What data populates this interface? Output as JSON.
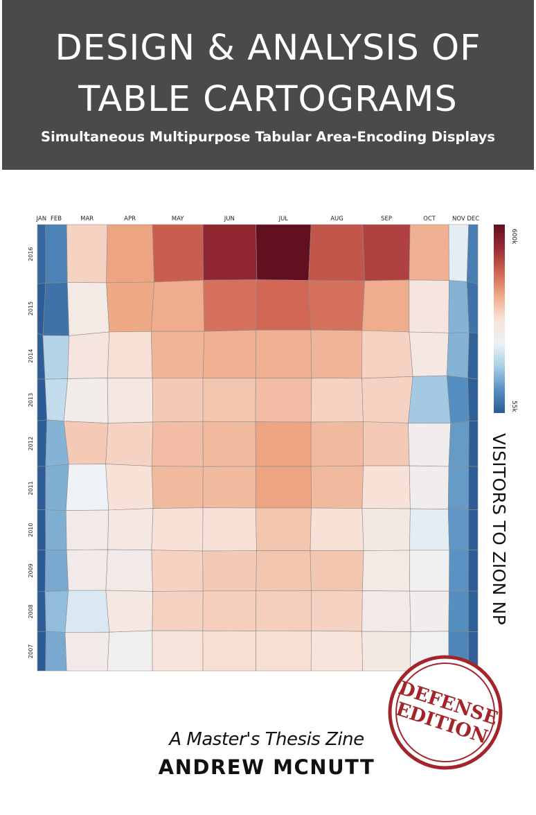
{
  "header": {
    "title_line1": "DESIGN & ANALYSIS OF",
    "title_line2": "TABLE CARTOGRAMS",
    "subtitle": "Simultaneous Multipurpose Tabular Area-Encoding Displays"
  },
  "chart_data": {
    "type": "heatmap",
    "title": "VISITORS TO ZION NP",
    "columns": [
      "JAN",
      "FEB",
      "MAR",
      "APR",
      "MAY",
      "JUN",
      "JUL",
      "AUG",
      "SEP",
      "OCT",
      "NOV",
      "DEC"
    ],
    "rows": [
      "2016",
      "2015",
      "2014",
      "2013",
      "2012",
      "2011",
      "2010",
      "2009",
      "2008",
      "2007"
    ],
    "units": "visitors",
    "values": [
      [
        72000,
        105000,
        345000,
        400000,
        470000,
        545000,
        600000,
        480000,
        505000,
        385000,
        250000,
        100000
      ],
      [
        58000,
        85000,
        295000,
        395000,
        390000,
        450000,
        460000,
        450000,
        390000,
        310000,
        160000,
        85000
      ],
      [
        60000,
        200000,
        310000,
        330000,
        380000,
        385000,
        385000,
        380000,
        345000,
        305000,
        160000,
        65000
      ],
      [
        55000,
        215000,
        285000,
        305000,
        355000,
        360000,
        370000,
        345000,
        345000,
        185000,
        120000,
        62000
      ],
      [
        60000,
        160000,
        355000,
        345000,
        370000,
        375000,
        400000,
        375000,
        355000,
        280000,
        135000,
        60000
      ],
      [
        58000,
        155000,
        260000,
        325000,
        375000,
        375000,
        400000,
        375000,
        325000,
        280000,
        135000,
        58000
      ],
      [
        55000,
        155000,
        290000,
        305000,
        325000,
        325000,
        360000,
        325000,
        300000,
        250000,
        130000,
        58000
      ],
      [
        55000,
        150000,
        290000,
        290000,
        345000,
        355000,
        360000,
        360000,
        295000,
        270000,
        125000,
        58000
      ],
      [
        58000,
        170000,
        240000,
        305000,
        345000,
        350000,
        350000,
        345000,
        290000,
        280000,
        120000,
        62000
      ],
      [
        56000,
        150000,
        290000,
        275000,
        320000,
        330000,
        330000,
        320000,
        300000,
        265000,
        110000,
        62000
      ]
    ],
    "color_scale": {
      "min": 55000,
      "max": 600000,
      "min_label": "55k",
      "max_label": "600k",
      "colors": [
        "#2c5a94",
        "#5790c2",
        "#acd0e6",
        "#eef2f6",
        "#f8e1d6",
        "#eea886",
        "#cf6351",
        "#9b2b35",
        "#62101f"
      ]
    }
  },
  "footer": {
    "subtitle": "A Master's Thesis Zine",
    "author": "ANDREW MCNUTT"
  },
  "stamp": {
    "line1": "DEFENSE",
    "line2": "EDITION",
    "color": "#a3252a"
  }
}
